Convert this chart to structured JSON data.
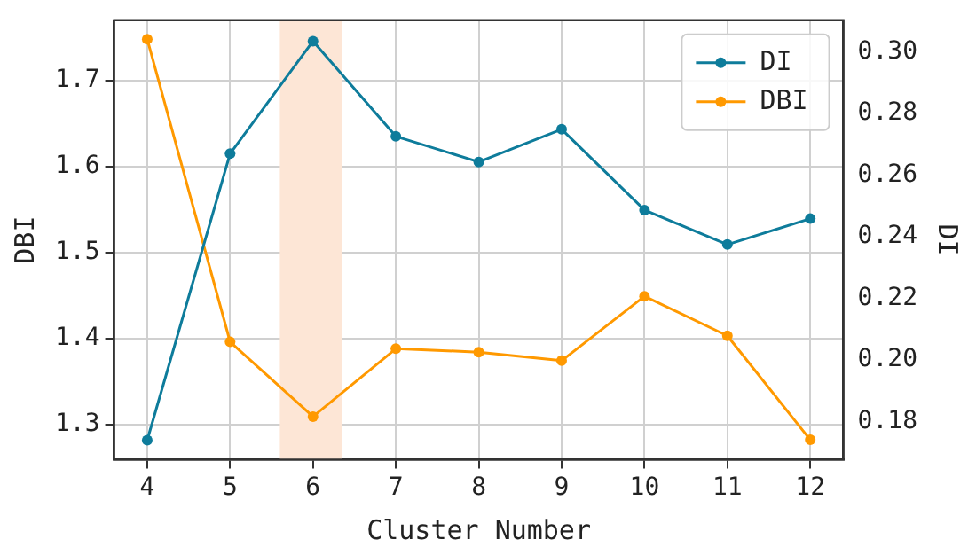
{
  "chart_data": {
    "type": "line",
    "xlabel": "Cluster Number",
    "ylabel": "DBI",
    "y2label": "DI",
    "x": [
      4,
      5,
      6,
      7,
      8,
      9,
      10,
      11,
      12
    ],
    "series": [
      {
        "name": "DI",
        "color": "#0e7c9b",
        "axis": "y2",
        "values": [
          0.174,
          0.267,
          0.3035,
          0.2726,
          0.2643,
          0.2749,
          0.2487,
          0.2375,
          0.2459
        ]
      },
      {
        "name": "DBI",
        "color": "#ff9900",
        "values": [
          1.748,
          1.396,
          1.309,
          1.388,
          1.384,
          1.374,
          1.449,
          1.403,
          1.282
        ]
      }
    ],
    "xlim": [
      3.6,
      12.4
    ],
    "xticks": [
      4,
      5,
      6,
      7,
      8,
      9,
      10,
      11,
      12
    ],
    "ylim": [
      1.259,
      1.77
    ],
    "yticks": [
      1.3,
      1.4,
      1.5,
      1.6,
      1.7
    ],
    "y2lim": [
      0.1677,
      0.3103
    ],
    "y2ticks": [
      0.18,
      {
        "value": 0.2,
        "label": "0.20"
      },
      0.22,
      0.24,
      0.26,
      0.28,
      {
        "value": 0.3,
        "label": "0.30"
      }
    ],
    "bands": [
      {
        "axis": "x",
        "from": 5.6,
        "to": 6.35,
        "color": "#fde6d6"
      }
    ],
    "grid": true,
    "legend": "top right",
    "marker": "circle",
    "line_style": "solid"
  }
}
